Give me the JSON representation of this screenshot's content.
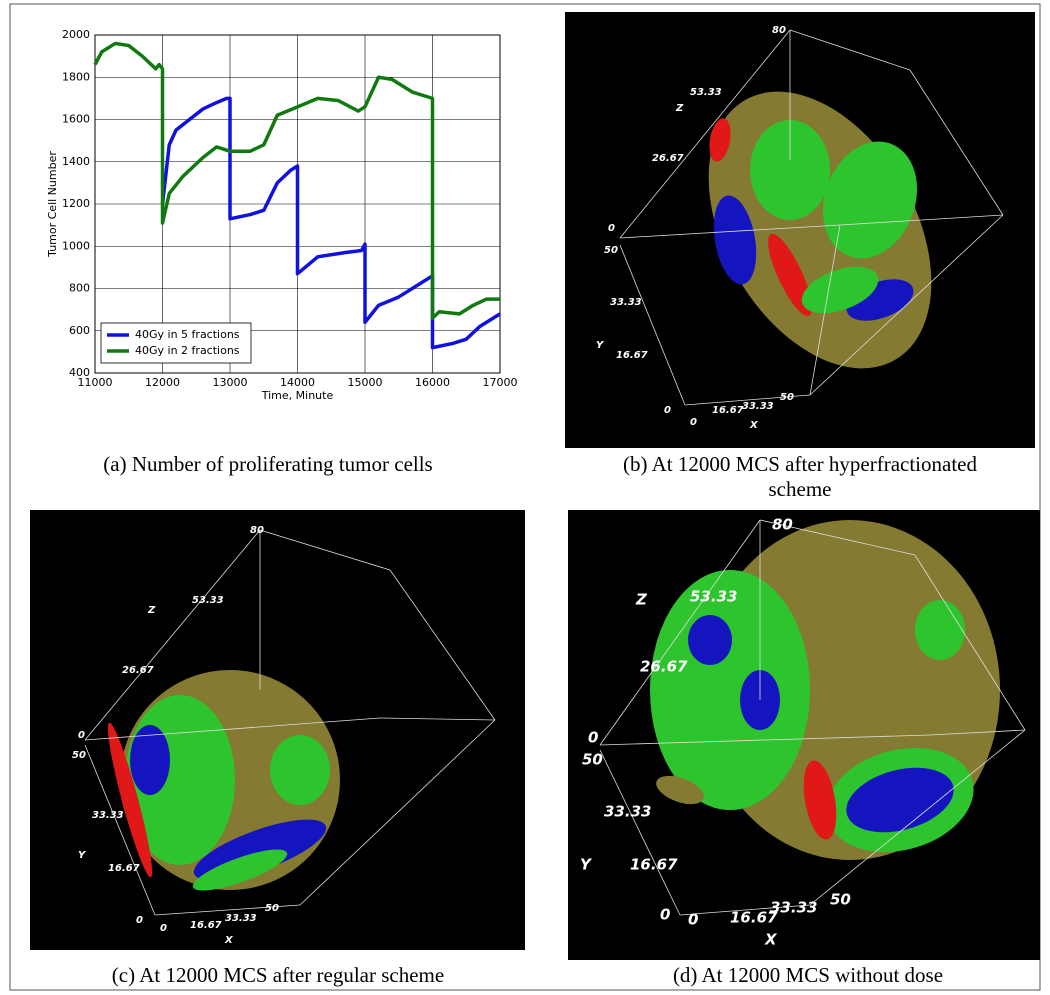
{
  "chart_data": {
    "type": "line",
    "xlabel": "Time, Minute",
    "ylabel": "Tumor Cell Number",
    "xlim": [
      11000,
      17000
    ],
    "ylim": [
      400,
      2000
    ],
    "xticks": [
      11000,
      12000,
      13000,
      14000,
      15000,
      16000,
      17000
    ],
    "yticks": [
      400,
      600,
      800,
      1000,
      1200,
      1400,
      1600,
      1800,
      2000
    ],
    "grid": true,
    "legend": "lower left",
    "series": [
      {
        "name": "40Gy in 5 fractions",
        "color": "#1010e0",
        "x": [
          12000,
          12100,
          12200,
          12400,
          12600,
          12800,
          12950,
          13000,
          13000,
          13300,
          13500,
          13700,
          13900,
          14000,
          14000,
          14300,
          14700,
          14950,
          15000,
          15000,
          15200,
          15500,
          15800,
          16000,
          16000,
          16300,
          16500,
          16700,
          17000
        ],
        "values": [
          1200,
          1480,
          1550,
          1600,
          1650,
          1680,
          1700,
          1700,
          1130,
          1150,
          1170,
          1300,
          1360,
          1380,
          870,
          950,
          970,
          980,
          1010,
          640,
          720,
          760,
          820,
          860,
          520,
          540,
          560,
          620,
          680
        ]
      },
      {
        "name": "40Gy in 2 fractions",
        "color": "#107a10",
        "x": [
          11000,
          11100,
          11300,
          11500,
          11700,
          11900,
          11950,
          12000,
          12000,
          12100,
          12300,
          12600,
          12800,
          13000,
          13300,
          13500,
          13700,
          14000,
          14300,
          14600,
          14900,
          15000,
          15200,
          15400,
          15700,
          15900,
          16000,
          16000,
          16100,
          16400,
          16600,
          16800,
          17000
        ],
        "values": [
          1860,
          1920,
          1960,
          1950,
          1900,
          1840,
          1860,
          1840,
          1110,
          1250,
          1330,
          1420,
          1470,
          1450,
          1450,
          1480,
          1620,
          1660,
          1700,
          1690,
          1640,
          1660,
          1800,
          1790,
          1730,
          1710,
          1700,
          660,
          690,
          680,
          720,
          750,
          750
        ]
      }
    ]
  },
  "captions": [
    "(a) Number of proliferating tumor cells",
    "(b) At 12000 MCS after hyperfractionated",
    "scheme",
    "(c) At 12000 MCS after regular scheme",
    "(d) At 12000 MCS without dose"
  ],
  "renders": [
    {
      "labels": [
        "80",
        "53.33",
        "Z",
        "26.67",
        "0",
        "50",
        "33.33",
        "Y",
        "16.67",
        "0",
        "0",
        "16.67",
        "33.33",
        "50",
        "X"
      ]
    },
    {
      "labels": [
        "80",
        "53.33",
        "Z",
        "26.67",
        "0",
        "50",
        "33.33",
        "Y",
        "16.67",
        "0",
        "0",
        "16.67",
        "33.33",
        "50",
        "X"
      ]
    },
    {
      "labels": [
        "80",
        "53.33",
        "Z",
        "26.67",
        "0",
        "50",
        "33.33",
        "Y",
        "16.67",
        "0",
        "0",
        "16.67",
        "33.33",
        "50",
        "X"
      ]
    }
  ]
}
